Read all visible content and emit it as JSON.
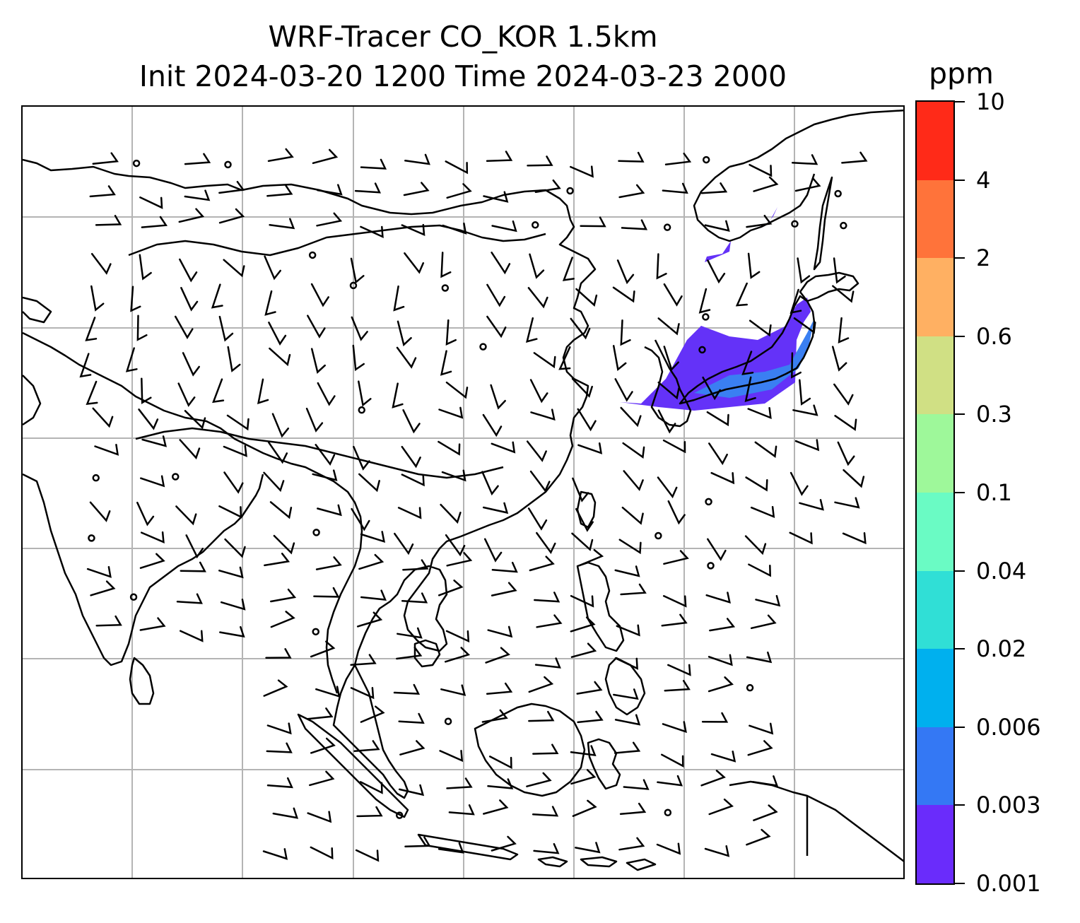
{
  "title": {
    "line1": "WRF-Tracer CO_KOR 1.5km",
    "line2": "Init 2024-03-20 1200 Time 2024-03-23 2000"
  },
  "colorbar": {
    "unit": "ppm",
    "levels": [
      "10",
      "4",
      "2",
      "0.6",
      "0.3",
      "0.1",
      "0.04",
      "0.02",
      "0.006",
      "0.003",
      "0.001"
    ],
    "colors": [
      "#ff2a18",
      "#ff733a",
      "#ffb062",
      "#d0e084",
      "#9ef89a",
      "#6afbc4",
      "#30dfd6",
      "#00b0ee",
      "#3478f4",
      "#6a2cfb"
    ]
  },
  "map": {
    "colors": {
      "coast": "#000000",
      "grid": "#b4b4b4",
      "plume_outer": "#6432f8",
      "plume_inner": "#3a7ff2"
    },
    "gridlines": "on",
    "wind_barbs": "on"
  }
}
